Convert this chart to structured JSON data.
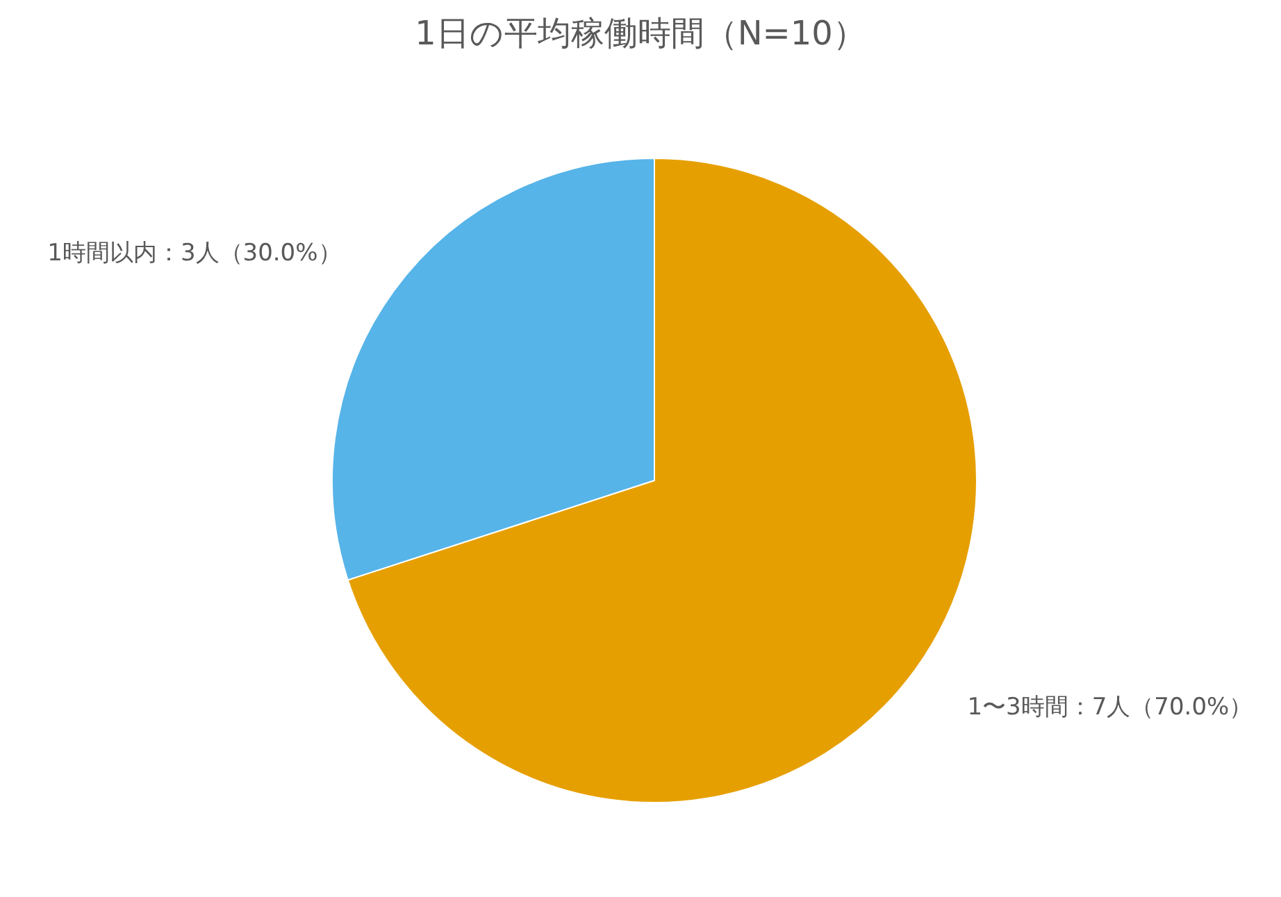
{
  "chart_data": {
    "type": "pie",
    "title": "1日の平均稼働時間（N=10）",
    "categories": [
      "1〜3時間",
      "1時間以内"
    ],
    "values": [
      7,
      3
    ],
    "colors": [
      "#e69f00",
      "#56b4e9"
    ],
    "value_labels": [
      "：7人（70.0%）",
      "：3人（30.0%）"
    ],
    "legend": false
  }
}
